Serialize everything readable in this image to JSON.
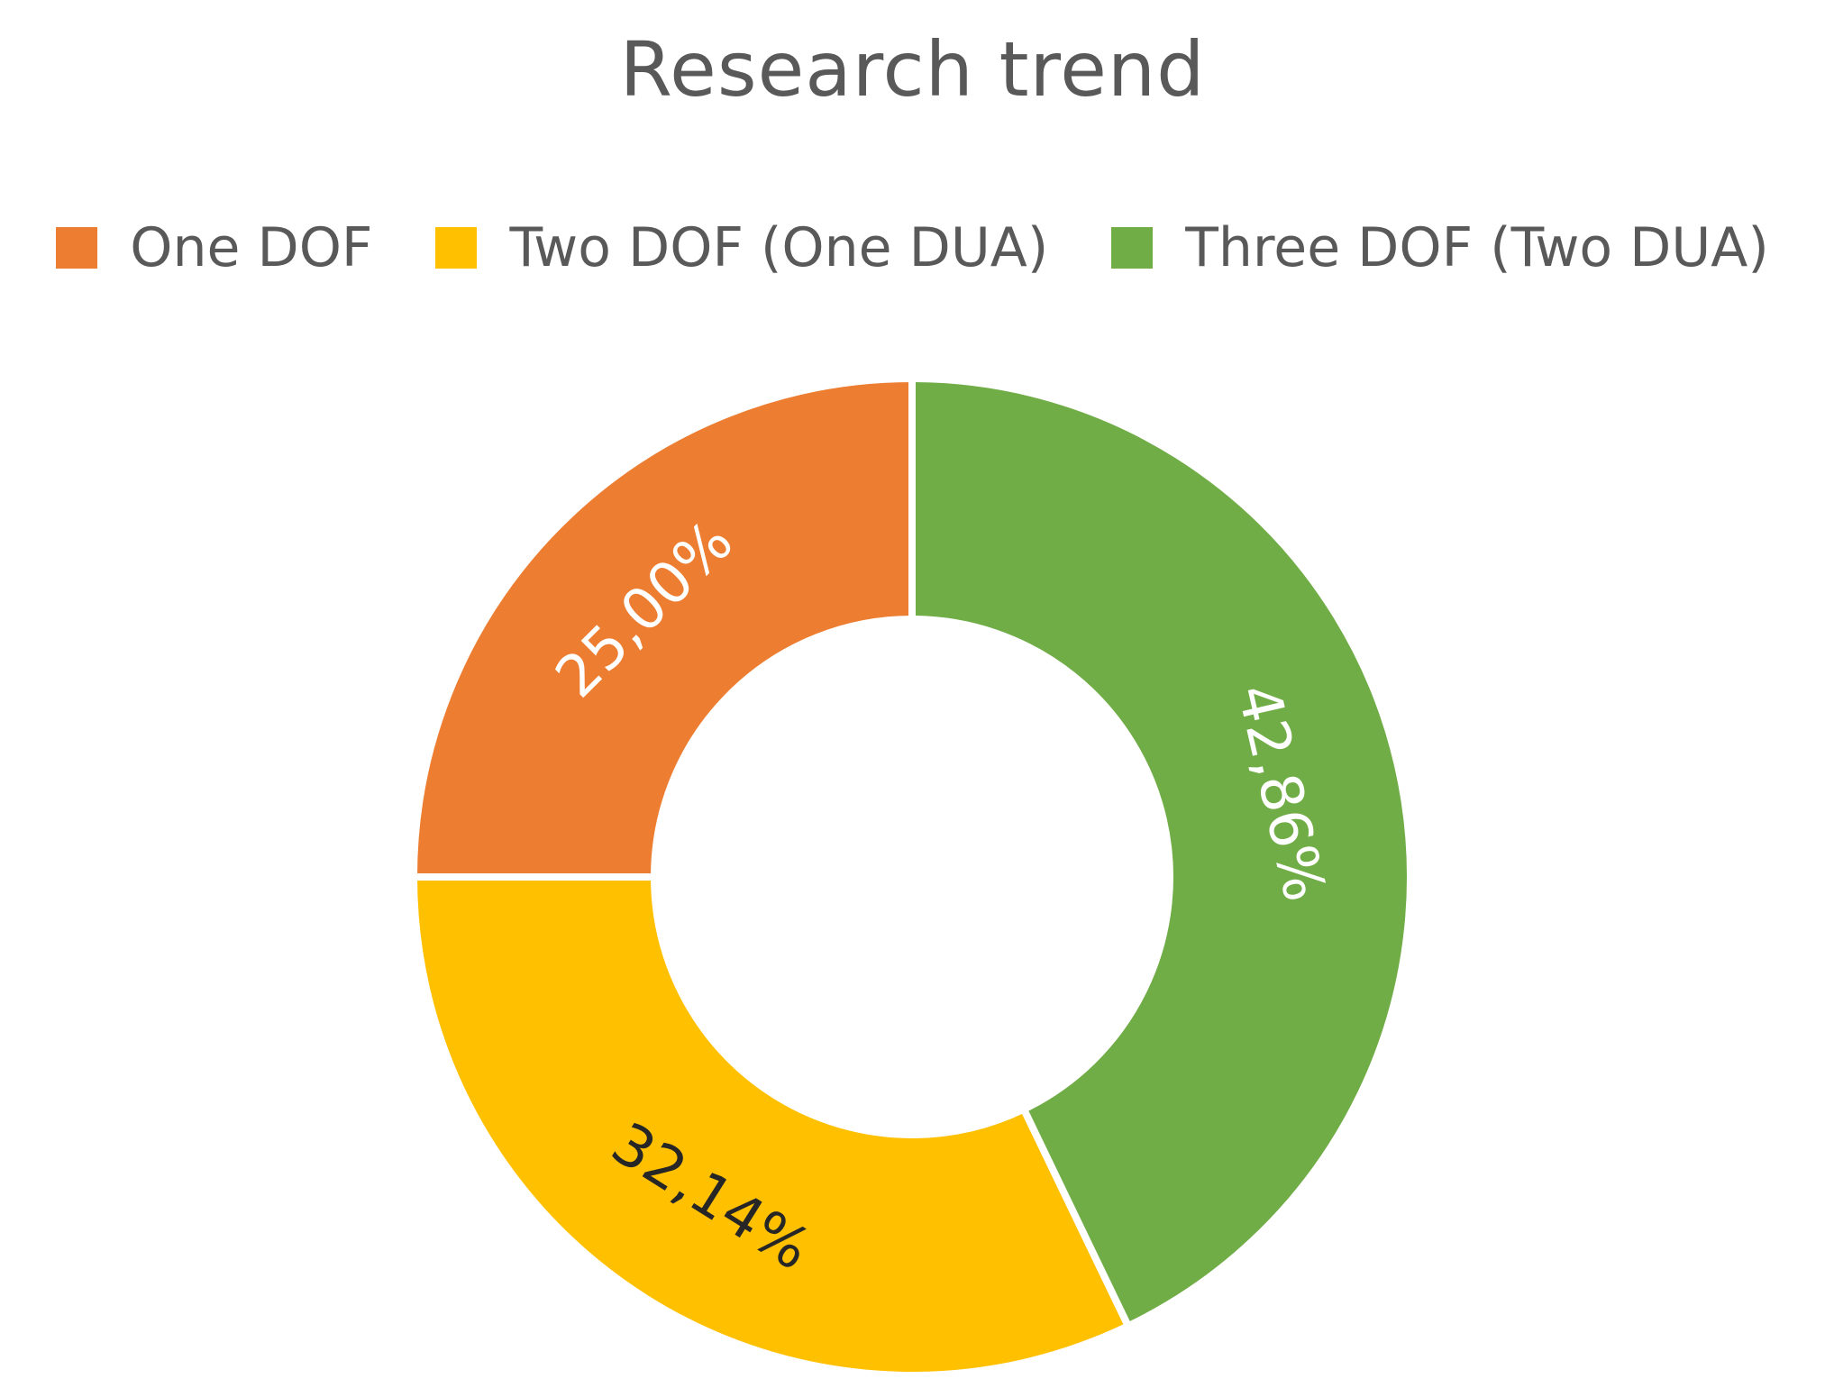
{
  "chart_data": {
    "type": "pie",
    "variant": "donut",
    "title": "Research trend",
    "legend_position": "top",
    "categories": [
      "One DOF",
      "Two DOF (One DUA)",
      "Three DOF (Two DUA)"
    ],
    "values": [
      25.0,
      32.14,
      42.86
    ],
    "value_unit": "%",
    "data_labels": [
      "25,00%",
      "32,14%",
      "42,86%"
    ],
    "colors": [
      "#ED7D31",
      "#FFC000",
      "#70AD47"
    ],
    "label_colors": [
      "#ffffff",
      "#262626",
      "#ffffff"
    ]
  }
}
